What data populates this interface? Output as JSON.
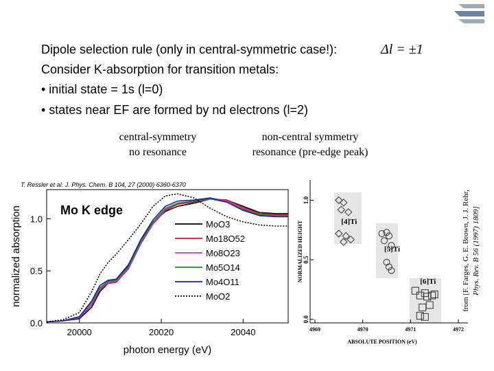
{
  "slide": {
    "rule": "Dipole selection rule (only in central-symmetric case!):",
    "rule_formula": "Δl = ±1",
    "line2": "Consider K-absorption for transition metals:",
    "bullet1": "• initial state = 1s (l=0)",
    "bullet2": "• states near EF are formed by nd electrons (l=2)",
    "left_caption": [
      "central-symmetry",
      "no resonance"
    ],
    "right_caption": [
      "non-central symmetry",
      "resonance (pre-edge peak)"
    ],
    "left_citation": "T. Ressler et al. J. Phys. Chem. B 104, 27 (2000) 6360-6370",
    "right_citation": [
      "from [F. Farges, G. E. Brown, J. J. Rehr,",
      "Phys. Rev. B 56 (1997) 1809]"
    ]
  },
  "chart_data": [
    {
      "type": "line",
      "annotation": "Mo K edge",
      "xlabel": "photon energy (eV)",
      "ylabel": "normalized absorption",
      "xlim": [
        19992,
        20051
      ],
      "xticks": [
        20000,
        20020,
        20040
      ],
      "ylim": [
        0,
        1.28
      ],
      "yticks": [
        {
          "value": 0,
          "label": "0.0"
        },
        {
          "value": 0.5,
          "label": "0.5"
        },
        {
          "value": 1,
          "label": "1.0"
        }
      ],
      "legend": "right",
      "x": [
        19992,
        19996,
        20000,
        20003,
        20005,
        20007,
        20009,
        20012,
        20015,
        20018,
        20021,
        20024,
        20028,
        20032,
        20036,
        20040,
        20044,
        20048,
        20051
      ],
      "series": [
        {
          "name": "MoO3",
          "color": "#000000",
          "values": [
            0.01,
            0.02,
            0.04,
            0.15,
            0.3,
            0.38,
            0.4,
            0.55,
            0.8,
            0.97,
            1.07,
            1.12,
            1.15,
            1.19,
            1.18,
            1.12,
            1.06,
            1.05,
            1.05
          ]
        },
        {
          "name": "Mo18O52",
          "color": "#e0141e",
          "values": [
            0.01,
            0.02,
            0.05,
            0.17,
            0.32,
            0.38,
            0.39,
            0.52,
            0.76,
            0.95,
            1.08,
            1.14,
            1.16,
            1.19,
            1.18,
            1.11,
            1.05,
            1.04,
            1.04
          ]
        },
        {
          "name": "Mo8O23",
          "color": "#c040c0",
          "values": [
            0.01,
            0.02,
            0.05,
            0.18,
            0.33,
            0.39,
            0.4,
            0.53,
            0.77,
            0.96,
            1.09,
            1.15,
            1.17,
            1.2,
            1.17,
            1.1,
            1.04,
            1.03,
            1.03
          ]
        },
        {
          "name": "Mo5O14",
          "color": "#208a20",
          "values": [
            0.01,
            0.02,
            0.06,
            0.2,
            0.34,
            0.4,
            0.41,
            0.54,
            0.78,
            0.97,
            1.1,
            1.15,
            1.17,
            1.19,
            1.16,
            1.09,
            1.04,
            1.03,
            1.03
          ]
        },
        {
          "name": "Mo4O11",
          "color": "#1020c0",
          "values": [
            0.01,
            0.02,
            0.06,
            0.21,
            0.36,
            0.41,
            0.42,
            0.56,
            0.8,
            0.99,
            1.12,
            1.17,
            1.18,
            1.2,
            1.16,
            1.08,
            1.03,
            1.02,
            1.02
          ]
        },
        {
          "name": "MoO2",
          "color": "#000000",
          "style": "dotted",
          "values": [
            0.01,
            0.03,
            0.1,
            0.3,
            0.47,
            0.58,
            0.66,
            0.8,
            0.95,
            1.12,
            1.22,
            1.24,
            1.2,
            1.1,
            1.02,
            0.97,
            0.94,
            0.93,
            0.93
          ]
        }
      ]
    },
    {
      "type": "scatter",
      "xlabel": "ABSOLUTE POSITION (eV)",
      "ylabel": "NORMALIZED HEIGHT",
      "xlim": [
        4968.9,
        4972.2
      ],
      "xticks": [
        4969,
        4970,
        4971,
        4972
      ],
      "ylim": [
        -0.03,
        1.17
      ],
      "yticks": [
        {
          "value": 0,
          "label": "0.0"
        },
        {
          "value": 0.5,
          "label": "0.5"
        },
        {
          "value": 1,
          "label": "1.0"
        }
      ],
      "annotations": [
        "[4]Ti",
        "[5]Ti",
        "[6]Ti"
      ],
      "series": [
        {
          "marker": "diamond",
          "color": "#333333",
          "x": [
            4969.5,
            4969.6,
            4969.55,
            4969.7,
            4969.5,
            4969.65,
            4969.75,
            4969.6
          ],
          "values": [
            1.0,
            0.98,
            0.92,
            0.9,
            0.72,
            0.7,
            0.67,
            0.65
          ]
        },
        {
          "marker": "circle",
          "color": "#333333",
          "x": [
            4970.4,
            4970.5,
            4970.55,
            4970.45,
            4970.6,
            4970.5,
            4970.55,
            4970.6
          ],
          "values": [
            0.72,
            0.73,
            0.7,
            0.66,
            0.62,
            0.48,
            0.44,
            0.41
          ]
        },
        {
          "marker": "square",
          "color": "#333333",
          "x": [
            4971.1,
            4971.2,
            4971.3,
            4971.35,
            4971.45,
            4971.5,
            4971.25,
            4971.4,
            4971.2,
            4971.3
          ],
          "values": [
            0.24,
            0.2,
            0.22,
            0.19,
            0.2,
            0.21,
            0.1,
            0.12,
            0.03,
            0.02
          ]
        }
      ]
    }
  ]
}
